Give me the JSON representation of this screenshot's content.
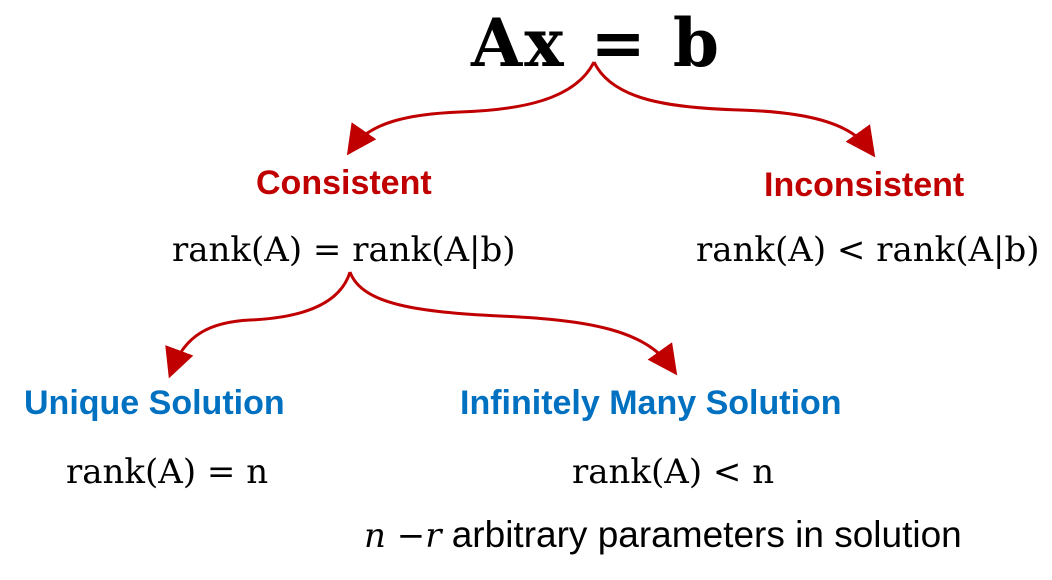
{
  "title": "Ax = b",
  "branches": {
    "consistent": {
      "label": "Consistent",
      "condition": "rank(A) = rank(A|b)"
    },
    "inconsistent": {
      "label": "Inconsistent",
      "condition": "rank(A) < rank(A|b)"
    }
  },
  "sub_branches": {
    "unique": {
      "label": "Unique Solution",
      "condition": "rank(A) = n"
    },
    "infinite": {
      "label": "Infinitely Many Solution",
      "condition": "rank(A) < n",
      "note_math": "n −r",
      "note_text": " arbitrary parameters in solution"
    }
  },
  "colors": {
    "arrow": "#c00000",
    "consistency_labels": "#c00000",
    "solution_labels": "#0070c0"
  }
}
